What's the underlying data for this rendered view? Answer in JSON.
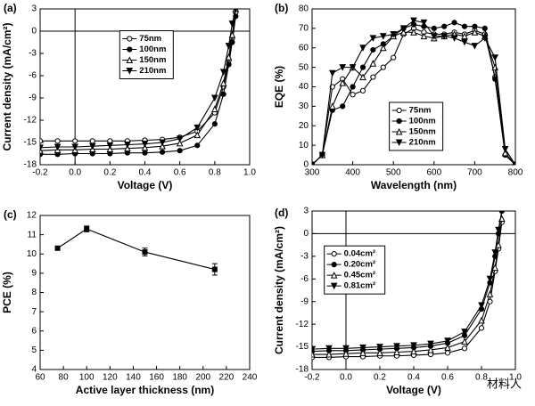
{
  "chart_data": [
    {
      "type": "line",
      "panel": "(a)",
      "xlabel": "Voltage (V)",
      "ylabel": "Current density (mA/cm²)",
      "x": [
        -0.2,
        -0.1,
        0,
        0.1,
        0.2,
        0.3,
        0.4,
        0.5,
        0.6,
        0.7,
        0.8,
        0.85,
        0.88,
        0.9,
        0.92
      ],
      "series": [
        {
          "name": "75nm",
          "color": "#000000",
          "marker": "circle-open",
          "values": [
            -14.8,
            -14.8,
            -14.8,
            -14.8,
            -14.8,
            -14.8,
            -14.7,
            -14.6,
            -14.3,
            -13.5,
            -11,
            -7.5,
            -4,
            -1,
            2.5
          ]
        },
        {
          "name": "100nm",
          "color": "#000000",
          "marker": "circle",
          "values": [
            -16.6,
            -16.6,
            -16.5,
            -16.5,
            -16.5,
            -16.4,
            -16.4,
            -16.3,
            -16.1,
            -15.4,
            -12.5,
            -8.5,
            -4.5,
            -1.5,
            2
          ]
        },
        {
          "name": "150nm",
          "color": "#000000",
          "marker": "triangle-open",
          "values": [
            -16.1,
            -16,
            -16,
            -15.9,
            -15.9,
            -15.8,
            -15.7,
            -15.5,
            -15.1,
            -14,
            -10.5,
            -7,
            -3.5,
            -0.5,
            3
          ]
        },
        {
          "name": "210nm",
          "color": "#000000",
          "marker": "triangle-down",
          "values": [
            -15.7,
            -15.6,
            -15.6,
            -15.5,
            -15.4,
            -15.3,
            -15.2,
            -15,
            -14.5,
            -13,
            -9,
            -5.5,
            -2,
            1,
            3
          ]
        }
      ],
      "xlim": [
        -0.2,
        1.0
      ],
      "xticks": [
        -0.2,
        {
          "value": 0,
          "label": "0.0"
        },
        0.2,
        0.4,
        0.6,
        0.8,
        {
          "value": 1,
          "label": "1.0"
        }
      ],
      "ylim": [
        -18,
        3
      ],
      "yticks": [
        3,
        0,
        -3,
        -6,
        -9,
        -12,
        -15,
        -18
      ],
      "zero_lines": true,
      "legend": "upper center"
    },
    {
      "type": "line",
      "panel": "(b)",
      "xlabel": "Wavelength (nm)",
      "ylabel": "EQE (%)",
      "x": [
        300,
        325,
        350,
        375,
        400,
        425,
        450,
        475,
        500,
        525,
        550,
        575,
        600,
        625,
        650,
        675,
        700,
        725,
        750,
        775,
        800
      ],
      "series": [
        {
          "name": "75nm",
          "color": "#000000",
          "marker": "circle-open",
          "values": [
            0,
            5,
            40,
            44,
            36,
            38,
            45,
            50,
            55,
            67,
            70,
            68,
            67,
            67,
            68,
            67,
            69,
            67,
            45,
            5,
            0
          ]
        },
        {
          "name": "100nm",
          "color": "#000000",
          "marker": "circle",
          "values": [
            0,
            5,
            28,
            30,
            40,
            50,
            59,
            62,
            66,
            70,
            72,
            71,
            70,
            71,
            73,
            71,
            71,
            70,
            44,
            5,
            0
          ]
        },
        {
          "name": "150nm",
          "color": "#000000",
          "marker": "triangle-open",
          "values": [
            0,
            5,
            30,
            42,
            50,
            45,
            52,
            60,
            66,
            68,
            68,
            66,
            65,
            66,
            67,
            66,
            68,
            66,
            50,
            6,
            0
          ]
        },
        {
          "name": "210nm",
          "color": "#000000",
          "marker": "triangle-down",
          "values": [
            0,
            5,
            47,
            50,
            50,
            60,
            65,
            66,
            67,
            70,
            74,
            73,
            66,
            66,
            65,
            63,
            61,
            65,
            55,
            8,
            0
          ]
        }
      ],
      "xlim": [
        300,
        800
      ],
      "xticks": [
        300,
        400,
        500,
        600,
        700,
        800
      ],
      "ylim": [
        0,
        80
      ],
      "yticks": [
        0,
        10,
        20,
        30,
        40,
        50,
        60,
        70,
        80
      ],
      "legend": "lower center"
    },
    {
      "type": "line",
      "panel": "(c)",
      "xlabel": "Active layer thickness (nm)",
      "ylabel": "PCE (%)",
      "x": [
        75,
        100,
        150,
        210
      ],
      "series": [
        {
          "color": "#000000",
          "marker": "square",
          "values": [
            10.3,
            11.3,
            10.1,
            9.2
          ],
          "errors": [
            0.1,
            0.15,
            0.2,
            0.3
          ]
        }
      ],
      "xlim": [
        60,
        240
      ],
      "xticks": [
        60,
        80,
        100,
        120,
        140,
        160,
        180,
        200,
        220,
        240
      ],
      "ylim": [
        4,
        12
      ],
      "yticks": [
        4,
        5,
        6,
        7,
        8,
        9,
        10,
        11,
        12
      ]
    },
    {
      "type": "line",
      "panel": "(d)",
      "xlabel": "Voltage (V)",
      "ylabel": "Current density (mA/cm²)",
      "x": [
        -0.2,
        -0.1,
        0,
        0.1,
        0.2,
        0.3,
        0.4,
        0.5,
        0.6,
        0.7,
        0.8,
        0.85,
        0.88,
        0.9,
        0.92
      ],
      "series": [
        {
          "name": "0.04cm²",
          "color": "#000000",
          "marker": "circle-open",
          "values": [
            -16.4,
            -16.4,
            -16.3,
            -16.3,
            -16.2,
            -16.2,
            -16.1,
            -16,
            -15.8,
            -15.2,
            -12.5,
            -9,
            -5,
            -2,
            1.5
          ]
        },
        {
          "name": "0.20cm²",
          "color": "#000000",
          "marker": "circle",
          "values": [
            -15.6,
            -15.5,
            -15.5,
            -15.4,
            -15.3,
            -15.2,
            -15.1,
            -14.9,
            -14.5,
            -13.5,
            -10,
            -6.5,
            -3,
            0,
            3
          ]
        },
        {
          "name": "0.45cm²",
          "color": "#000000",
          "marker": "triangle-open",
          "values": [
            -16,
            -16,
            -15.9,
            -15.8,
            -15.8,
            -15.7,
            -15.6,
            -15.4,
            -15.1,
            -14.3,
            -11.5,
            -8,
            -4.5,
            -1.5,
            2
          ]
        },
        {
          "name": "0.81cm²",
          "color": "#000000",
          "marker": "triangle-down",
          "values": [
            -15.3,
            -15.2,
            -15.2,
            -15.1,
            -15,
            -14.9,
            -14.8,
            -14.6,
            -14.2,
            -13,
            -9.5,
            -6,
            -2.5,
            0.5,
            3
          ]
        }
      ],
      "xlim": [
        -0.2,
        1.0
      ],
      "xticks": [
        -0.2,
        {
          "value": 0,
          "label": "0.0"
        },
        0.2,
        0.4,
        0.6,
        0.8,
        {
          "value": 1,
          "label": "1.0"
        }
      ],
      "ylim": [
        -18,
        3
      ],
      "yticks": [
        3,
        0,
        -3,
        -6,
        -9,
        -12,
        -15,
        -18
      ],
      "zero_lines": true,
      "legend": "center left"
    }
  ],
  "watermark": "材料人"
}
